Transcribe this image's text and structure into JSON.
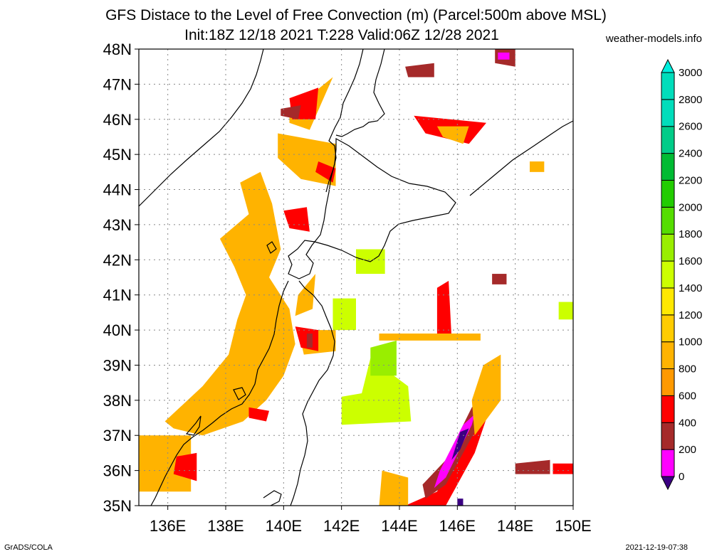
{
  "header": {
    "title_line1": "GFS Distace to the Level of Free Convection (m) (Parcel:500m above MSL)",
    "title_line2": "Init:18Z 12/18 2021 T:228 Valid:06Z 12/28 2021",
    "credit": "weather-models.info"
  },
  "footer": {
    "left": "GrADS/COLA",
    "right": "2021-12-19-07:38"
  },
  "map": {
    "lat_labels": [
      "48N",
      "47N",
      "46N",
      "45N",
      "44N",
      "43N",
      "42N",
      "41N",
      "40N",
      "39N",
      "38N",
      "37N",
      "36N",
      "35N"
    ],
    "lon_labels": [
      "136E",
      "138E",
      "140E",
      "142E",
      "144E",
      "146E",
      "148E",
      "150E"
    ],
    "lat_range": [
      35,
      48
    ],
    "lon_range": [
      135,
      150
    ]
  },
  "colorbar": {
    "labels": [
      "0",
      "200",
      "400",
      "600",
      "800",
      "1000",
      "1200",
      "1400",
      "1600",
      "1800",
      "2000",
      "2200",
      "2400",
      "2600",
      "2800",
      "3000"
    ],
    "colors": [
      "#3b0082",
      "#ff00ff",
      "#a52a2a",
      "#ff0000",
      "#ff9900",
      "#ffb300",
      "#ffcc00",
      "#ffe800",
      "#ccff00",
      "#99ee00",
      "#55dd00",
      "#22cc00",
      "#00bb33",
      "#00cc88",
      "#00ddbb",
      "#00eedd"
    ]
  },
  "field_colors": {
    "c600": "#ff0000",
    "c800": "#ff9900",
    "c1000": "#ffb300",
    "c400": "#a52a2a",
    "c200": "#ff00ff",
    "c0": "#3b0082",
    "c1600": "#ccff00",
    "c1800": "#99ee00"
  }
}
